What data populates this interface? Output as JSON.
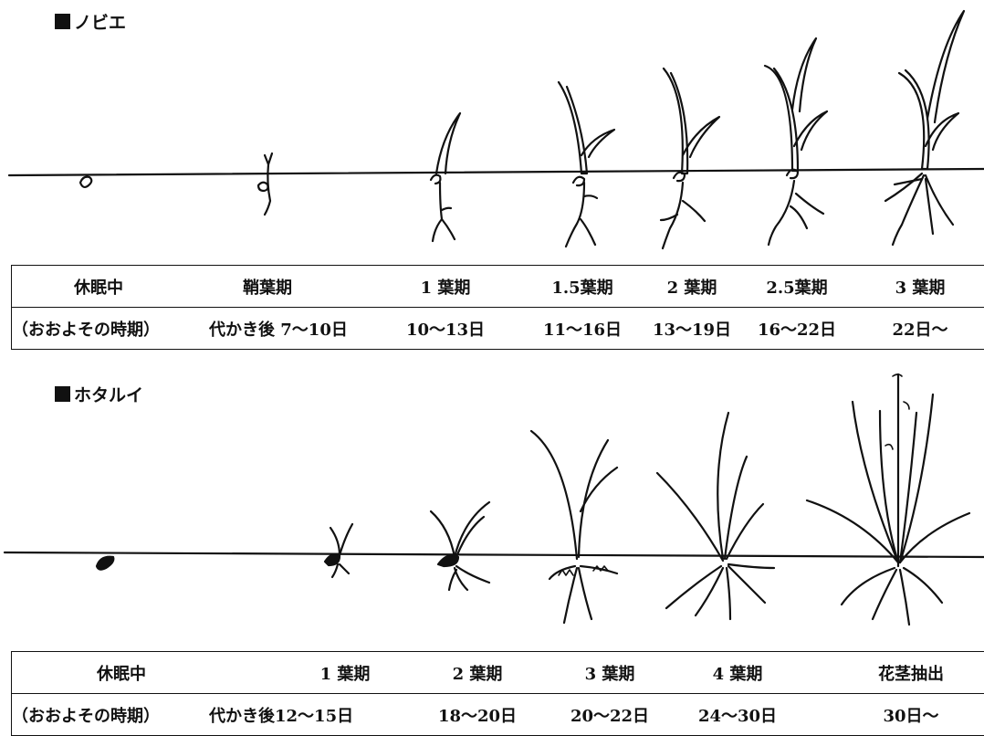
{
  "sections": [
    {
      "title": "ノビエ",
      "stages": [
        "休眠中",
        "鞘葉期",
        "1 葉期",
        "1.5葉期",
        "2 葉期",
        "2.5葉期",
        "3 葉期"
      ],
      "timing_label": "（おおよその時期）",
      "timings": [
        "代かき後 7～10日",
        "10～13日",
        "11～16日",
        "13～19日",
        "16～22日",
        "22日～"
      ]
    },
    {
      "title": "ホタルイ",
      "stages": [
        "休眠中",
        "1 葉期",
        "2 葉期",
        "3 葉期",
        "4 葉期",
        "花茎抽出"
      ],
      "timing_label": "（おおよその時期）",
      "timings": [
        "代かき後12～15日",
        "18～20日",
        "20～22日",
        "24～30日",
        "30日～"
      ]
    }
  ]
}
